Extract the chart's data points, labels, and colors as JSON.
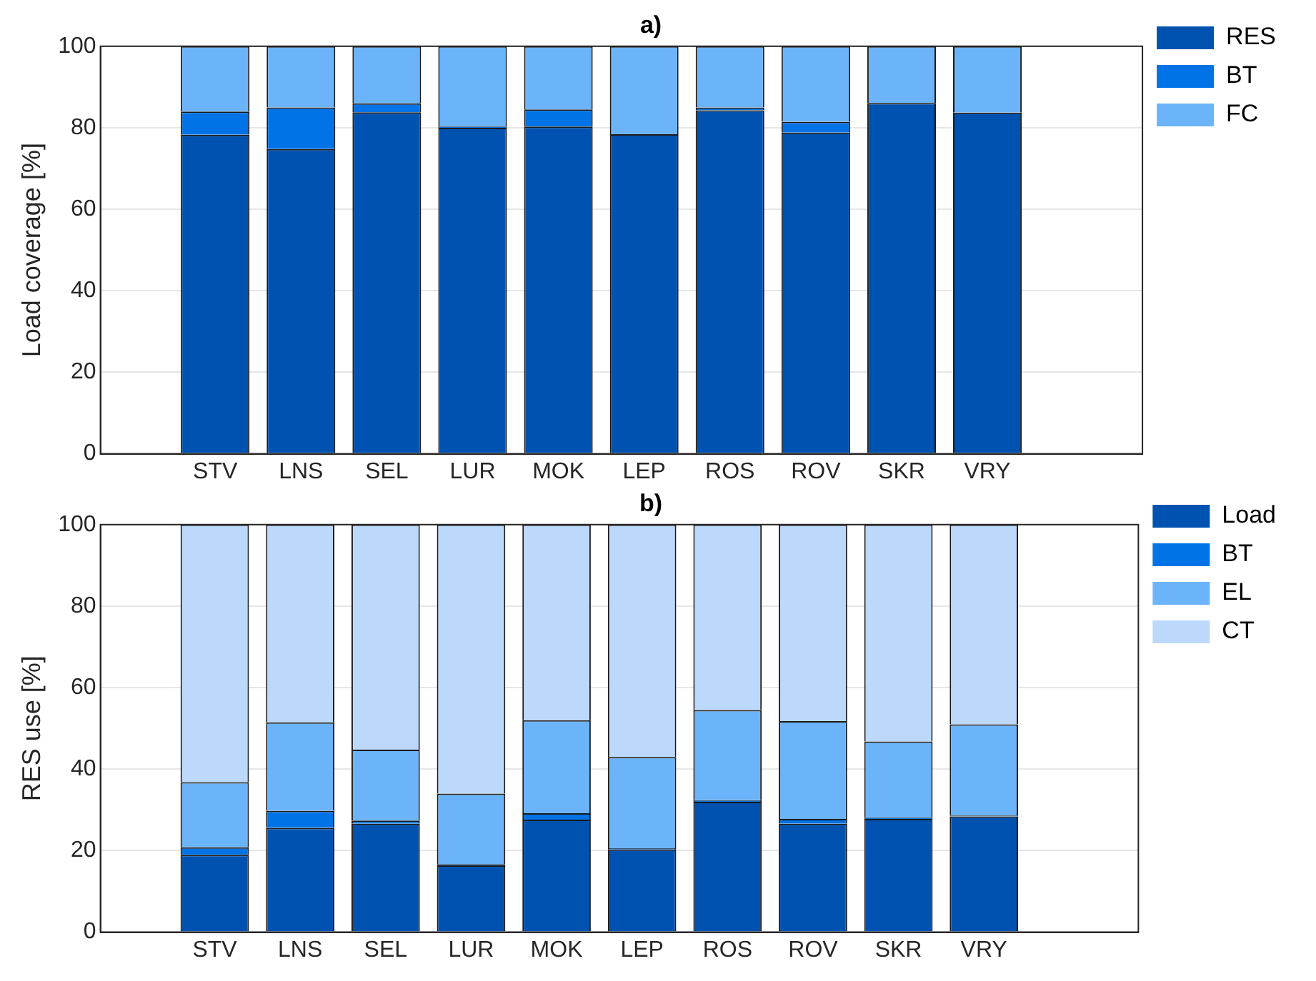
{
  "chart_data": [
    {
      "type": "bar",
      "title": "a)",
      "ylabel": "Load coverage [%]",
      "categories": [
        "STV",
        "LNS",
        "SEL",
        "LUR",
        "MOK",
        "LEP",
        "ROS",
        "ROV",
        "SKR",
        "VRY"
      ],
      "stacked": true,
      "ylim": [
        0,
        100
      ],
      "yticks": [
        0,
        20,
        40,
        60,
        80,
        100
      ],
      "grid": "y",
      "legend": "top right",
      "series": [
        {
          "name": "RES",
          "color": "#0052b0",
          "values": [
            78.3,
            74.8,
            83.8,
            80,
            80.3,
            78.4,
            84.3,
            78.8,
            86.1,
            83.7
          ]
        },
        {
          "name": "BT",
          "color": "#0073e6",
          "values": [
            5.7,
            10.2,
            2.2,
            0.3,
            4.2,
            null,
            0.7,
            2.7,
            null,
            null
          ]
        },
        {
          "name": "FC",
          "color": "#6cb4fa",
          "values": [
            16,
            15,
            14,
            19.7,
            15.5,
            21.6,
            15,
            18.5,
            13.9,
            16.3
          ]
        }
      ]
    },
    {
      "type": "bar",
      "title": "b)",
      "ylabel": "RES use [%]",
      "categories": [
        "STV",
        "LNS",
        "SEL",
        "LUR",
        "MOK",
        "LEP",
        "ROS",
        "ROV",
        "SKR",
        "VRY"
      ],
      "stacked": true,
      "ylim": [
        0,
        100
      ],
      "yticks": [
        0,
        20,
        40,
        60,
        80,
        100
      ],
      "grid": "y",
      "legend": "top right",
      "series": [
        {
          "name": "Load",
          "color": "#0052b0",
          "values": [
            19,
            25.6,
            26.6,
            16.4,
            27.6,
            20.3,
            32,
            26.6,
            27.8,
            28.4
          ]
        },
        {
          "name": "BT",
          "color": "#0073e6",
          "values": [
            1.8,
            4.2,
            0.8,
            0.3,
            1.6,
            0.3,
            0.4,
            1.2,
            0.3,
            0.2
          ]
        },
        {
          "name": "EL",
          "color": "#6cb4fa",
          "values": [
            16,
            21.7,
            17.4,
            17.3,
            22.8,
            22.4,
            22.1,
            24,
            18.7,
            22.4
          ]
        },
        {
          "name": "CT",
          "color": "#bcd9fc",
          "values": [
            63.2,
            48.5,
            55.2,
            66,
            48,
            57,
            45.5,
            48.2,
            53.2,
            49
          ]
        }
      ]
    }
  ]
}
